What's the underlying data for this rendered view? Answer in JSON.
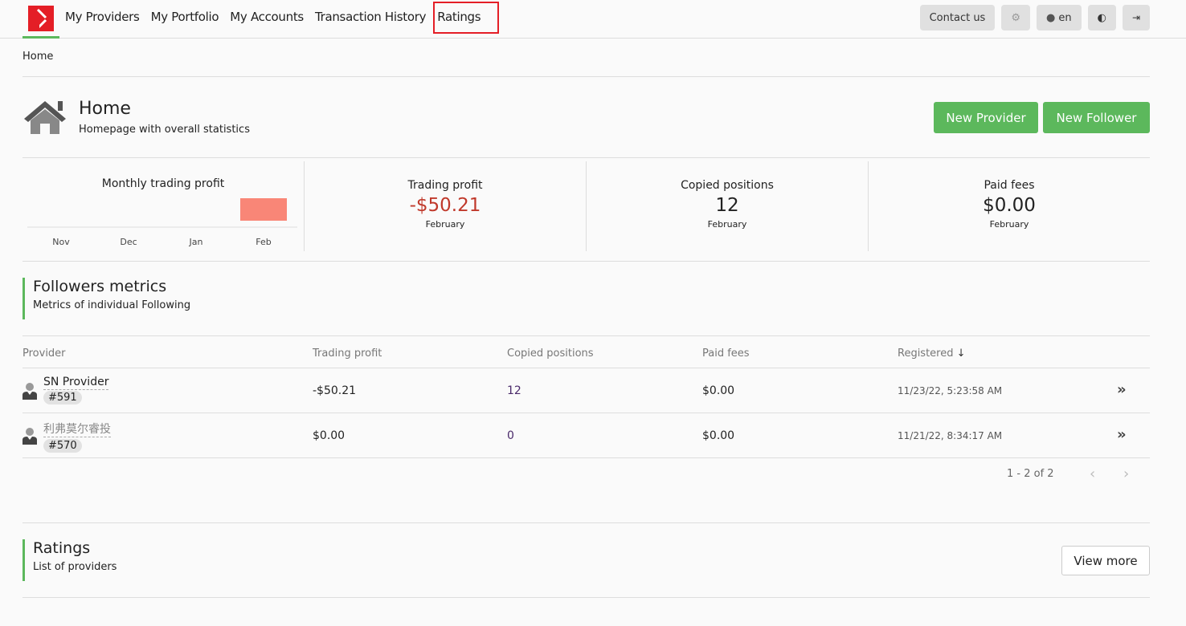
{
  "nav": {
    "links": [
      "My Providers",
      "My Portfolio",
      "My Accounts",
      "Transaction History",
      "Ratings"
    ],
    "contact": "Contact us",
    "lang": "en"
  },
  "breadcrumb": "Home",
  "header": {
    "title": "Home",
    "subtitle": "Homepage with overall statistics",
    "new_provider": "New Provider",
    "new_follower": "New Follower"
  },
  "chart_data": {
    "type": "bar",
    "title": "Monthly trading profit",
    "categories": [
      "Nov",
      "Dec",
      "Jan",
      "Feb"
    ],
    "values": [
      0,
      0,
      0,
      -50.21
    ],
    "bar_color": "#f98677"
  },
  "stats": [
    {
      "label": "Trading profit",
      "value": "-$50.21",
      "month": "February",
      "color": "#c0392b"
    },
    {
      "label": "Copied positions",
      "value": "12",
      "month": "February",
      "color": "#222"
    },
    {
      "label": "Paid fees",
      "value": "$0.00",
      "month": "February",
      "color": "#222"
    }
  ],
  "followers": {
    "title": "Followers metrics",
    "subtitle": "Metrics of individual Following",
    "columns": [
      "Provider",
      "Trading profit",
      "Copied positions",
      "Paid fees",
      "Registered"
    ],
    "rows": [
      {
        "name": "SN Provider",
        "id": "#591",
        "profit": "-$50.21",
        "positions": "12",
        "fees": "$0.00",
        "registered": "11/23/22, 5:23:58 AM"
      },
      {
        "name": "利弗莫尔睿投",
        "id": "#570",
        "profit": "$0.00",
        "positions": "0",
        "fees": "$0.00",
        "registered": "11/21/22, 8:34:17 AM"
      }
    ],
    "pagination": "1 - 2 of 2"
  },
  "ratings": {
    "title": "Ratings",
    "subtitle": "List of providers",
    "view_more": "View more"
  }
}
